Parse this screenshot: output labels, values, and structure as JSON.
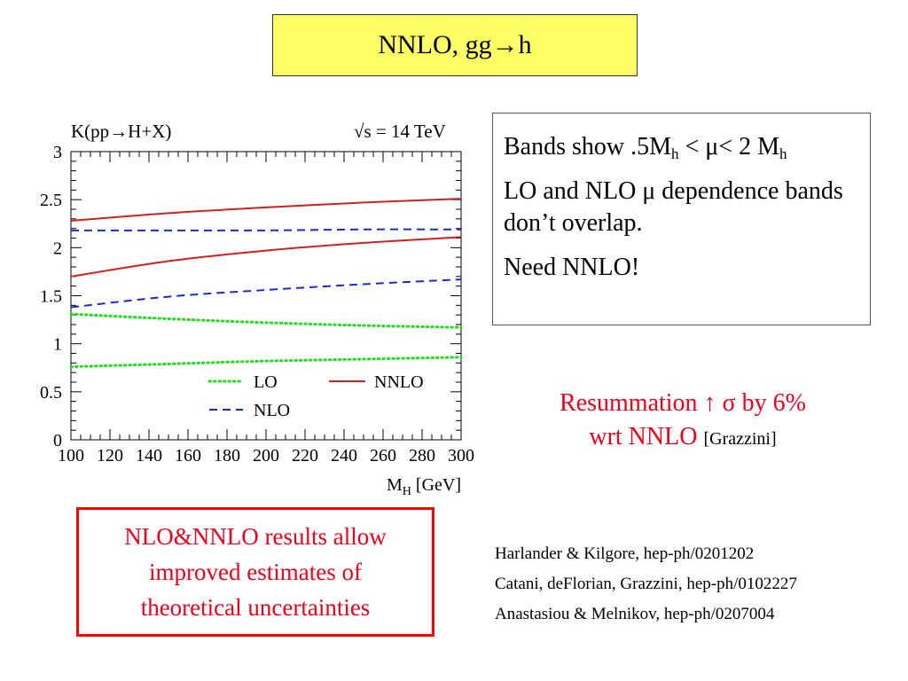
{
  "slide": {
    "title": "NNLO, gg→h",
    "info_box": {
      "line1_pre": "Bands show .5M",
      "line1_sub1": "h",
      "line1_mid": " < μ< 2 M",
      "line1_sub2": "h",
      "line2": "LO and NLO μ dependence bands don’t overlap.",
      "line3": "Need NNLO!"
    },
    "resummation": {
      "line1": "Resummation ↑ σ by 6%",
      "line2": "wrt NNLO",
      "citation": "[Grazzini]"
    },
    "red_box": {
      "line1": "NLO&NNLO results allow",
      "line2": "improved estimates of",
      "line3": "theoretical uncertainties"
    },
    "references": [
      "Harlander & Kilgore, hep-ph/0201202",
      "Catani, deFlorian, Grazzini,  hep-ph/0102227",
      "Anastasiou & Melnikov, hep-ph/0207004"
    ]
  },
  "chart_data": {
    "type": "line",
    "title": "K(pp→H+X)",
    "annotation": "√s = 14 TeV",
    "xlabel": "M_H [GeV]",
    "xlabel_main": "M",
    "xlabel_sub": "H",
    "xlabel_unit": " [GeV]",
    "ylabel": "",
    "xlim": [
      100,
      300
    ],
    "ylim": [
      0,
      3
    ],
    "xticks": [
      100,
      120,
      140,
      160,
      180,
      200,
      220,
      240,
      260,
      280,
      300
    ],
    "yticks": [
      0,
      0.5,
      1,
      1.5,
      2,
      2.5,
      3
    ],
    "ytick_labels": [
      "0",
      "0.5",
      "1",
      "1.5",
      "2",
      "2.5",
      "3"
    ],
    "legend_position": "bottom-right",
    "colors": {
      "LO": "#22dd22",
      "NLO": "#1a2bcc",
      "NNLO": "#cc2222"
    },
    "series": [
      {
        "name": "LO",
        "style": "dotted",
        "band": "upper",
        "x": [
          100,
          150,
          200,
          250,
          300
        ],
        "y": [
          1.31,
          1.26,
          1.22,
          1.19,
          1.17
        ]
      },
      {
        "name": "LO",
        "style": "dotted",
        "band": "lower",
        "x": [
          100,
          150,
          200,
          250,
          300
        ],
        "y": [
          0.76,
          0.79,
          0.82,
          0.84,
          0.86
        ]
      },
      {
        "name": "NLO",
        "style": "dashed",
        "band": "upper",
        "x": [
          100,
          150,
          200,
          250,
          300
        ],
        "y": [
          2.18,
          2.18,
          2.18,
          2.19,
          2.19
        ]
      },
      {
        "name": "NLO",
        "style": "dashed",
        "band": "lower",
        "x": [
          100,
          150,
          200,
          250,
          300
        ],
        "y": [
          1.38,
          1.49,
          1.56,
          1.62,
          1.67
        ]
      },
      {
        "name": "NNLO",
        "style": "solid",
        "band": "upper",
        "x": [
          100,
          150,
          200,
          250,
          300
        ],
        "y": [
          2.28,
          2.36,
          2.42,
          2.47,
          2.51
        ]
      },
      {
        "name": "NNLO",
        "style": "solid",
        "band": "lower",
        "x": [
          100,
          150,
          200,
          250,
          300
        ],
        "y": [
          1.7,
          1.86,
          1.97,
          2.05,
          2.11
        ]
      }
    ],
    "legend": [
      {
        "label": "LO",
        "style": "dotted",
        "color": "#22dd22"
      },
      {
        "label": "NNLO",
        "style": "solid",
        "color": "#cc2222"
      },
      {
        "label": "NLO",
        "style": "dashed",
        "color": "#1a2bcc"
      }
    ]
  }
}
